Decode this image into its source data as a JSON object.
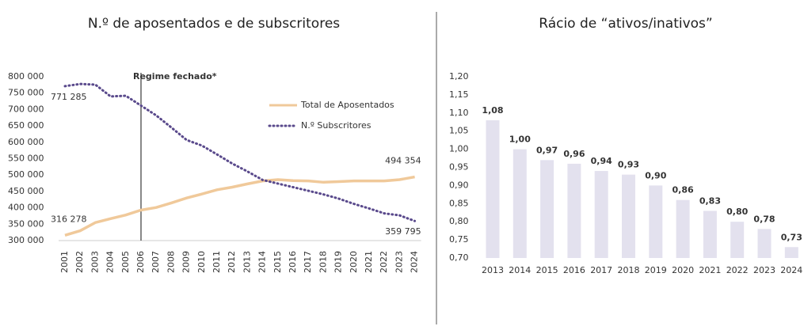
{
  "chart_data": [
    {
      "type": "line",
      "title": "N.º de aposentados e de subscritores",
      "categories": [
        "2001",
        "2002",
        "2003",
        "2004",
        "2005",
        "2006",
        "2007",
        "2008",
        "2009",
        "2010",
        "2011",
        "2012",
        "2013",
        "2014",
        "2015",
        "2016",
        "2017",
        "2018",
        "2019",
        "2020",
        "2021",
        "2022",
        "2023",
        "2024"
      ],
      "series": [
        {
          "name": "Total de Aposentados",
          "color": "#f0c99a",
          "style": "solid",
          "values": [
            316278,
            330000,
            355000,
            367000,
            378000,
            393000,
            401000,
            415000,
            430000,
            442000,
            455000,
            463000,
            473000,
            482000,
            486000,
            483000,
            482000,
            478000,
            480000,
            482000,
            482000,
            482000,
            486000,
            494354
          ],
          "value_labels": [
            "316 278",
            null,
            null,
            null,
            null,
            null,
            null,
            null,
            null,
            null,
            null,
            null,
            null,
            null,
            null,
            null,
            null,
            null,
            null,
            null,
            null,
            null,
            null,
            "494 354"
          ]
        },
        {
          "name": "N.º Subscritores",
          "color": "#5a4a8c",
          "style": "dotted",
          "values": [
            771285,
            778000,
            776000,
            740000,
            742000,
            712000,
            682000,
            645000,
            607000,
            590000,
            563000,
            535000,
            511000,
            485000,
            474000,
            463000,
            452000,
            441000,
            428000,
            412000,
            398000,
            383000,
            377000,
            359795
          ],
          "value_labels": [
            "771 285",
            null,
            null,
            null,
            null,
            null,
            null,
            null,
            null,
            null,
            null,
            null,
            null,
            null,
            null,
            null,
            null,
            null,
            null,
            null,
            null,
            null,
            null,
            "359 795"
          ]
        }
      ],
      "ylim": [
        300000,
        800000
      ],
      "yticks": [
        {
          "value": 300000,
          "label": "300 000"
        },
        {
          "value": 350000,
          "label": "350 000"
        },
        {
          "value": 400000,
          "label": "400 000"
        },
        {
          "value": 450000,
          "label": "450 000"
        },
        {
          "value": 500000,
          "label": "500 000"
        },
        {
          "value": 550000,
          "label": "550 000"
        },
        {
          "value": 600000,
          "label": "600 000"
        },
        {
          "value": 650000,
          "label": "650 000"
        },
        {
          "value": 700000,
          "label": "700 000"
        },
        {
          "value": 750000,
          "label": "750 000"
        },
        {
          "value": 800000,
          "label": "800 000"
        }
      ],
      "annotation": {
        "text": "Regime fechado*",
        "x": "2006"
      }
    },
    {
      "type": "bar",
      "title": "Rácio de “ativos/inativos”",
      "color": "#e3e1ee",
      "categories": [
        "2013",
        "2014",
        "2015",
        "2016",
        "2017",
        "2018",
        "2019",
        "2020",
        "2021",
        "2022",
        "2023",
        "2024"
      ],
      "values": [
        1.08,
        1.0,
        0.97,
        0.96,
        0.94,
        0.93,
        0.9,
        0.86,
        0.83,
        0.8,
        0.78,
        0.73
      ],
      "value_labels": [
        "1,08",
        "1,00",
        "0,97",
        "0,96",
        "0,94",
        "0,93",
        "0,90",
        "0,86",
        "0,83",
        "0,80",
        "0,78",
        "0,73"
      ],
      "ylim": [
        0.7,
        1.2
      ],
      "yticks": [
        {
          "value": 0.7,
          "label": "0,70"
        },
        {
          "value": 0.75,
          "label": "0,75"
        },
        {
          "value": 0.8,
          "label": "0,80"
        },
        {
          "value": 0.85,
          "label": "0,85"
        },
        {
          "value": 0.9,
          "label": "0,90"
        },
        {
          "value": 0.95,
          "label": "0,95"
        },
        {
          "value": 1.0,
          "label": "1,00"
        },
        {
          "value": 1.05,
          "label": "1,05"
        },
        {
          "value": 1.1,
          "label": "1,10"
        },
        {
          "value": 1.15,
          "label": "1,15"
        },
        {
          "value": 1.2,
          "label": "1,20"
        }
      ]
    }
  ]
}
